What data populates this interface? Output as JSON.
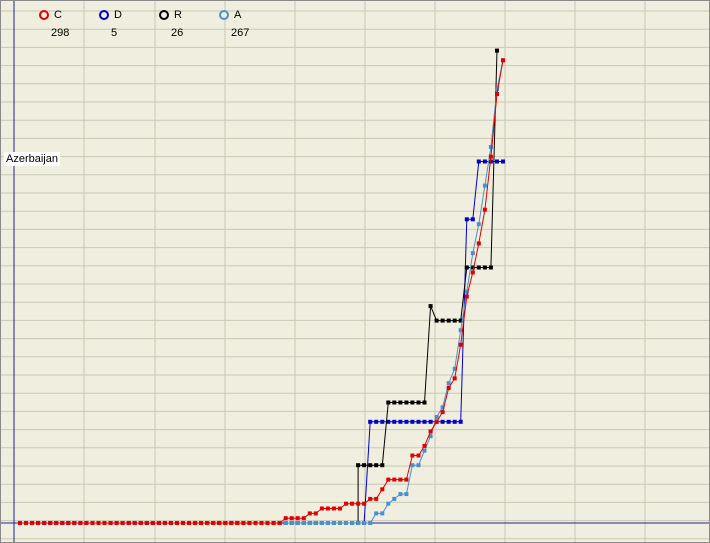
{
  "chart_data": {
    "type": "line",
    "region_label": "Azerbaijan",
    "series": [
      {
        "name": "C",
        "count": "298",
        "color": "#e00000",
        "points": [
          [
            0,
            0
          ],
          [
            1,
            0
          ],
          [
            2,
            0
          ],
          [
            3,
            0
          ],
          [
            4,
            0
          ],
          [
            5,
            0
          ],
          [
            6,
            0
          ],
          [
            7,
            0
          ],
          [
            8,
            0
          ],
          [
            9,
            0
          ],
          [
            10,
            0
          ],
          [
            11,
            0
          ],
          [
            12,
            0
          ],
          [
            13,
            0
          ],
          [
            14,
            0
          ],
          [
            15,
            0
          ],
          [
            16,
            0
          ],
          [
            17,
            0
          ],
          [
            18,
            0
          ],
          [
            19,
            0
          ],
          [
            20,
            0
          ],
          [
            21,
            0
          ],
          [
            22,
            0
          ],
          [
            23,
            0
          ],
          [
            24,
            0
          ],
          [
            25,
            0
          ],
          [
            26,
            0
          ],
          [
            27,
            0
          ],
          [
            28,
            0
          ],
          [
            29,
            0
          ],
          [
            30,
            0
          ],
          [
            31,
            0
          ],
          [
            32,
            0
          ],
          [
            33,
            0
          ],
          [
            34,
            0
          ],
          [
            35,
            0
          ],
          [
            36,
            0
          ],
          [
            37,
            0
          ],
          [
            38,
            0
          ],
          [
            39,
            0
          ],
          [
            40,
            0
          ],
          [
            41,
            0
          ],
          [
            42,
            0
          ],
          [
            43,
            0
          ],
          [
            44,
            1
          ],
          [
            45,
            1
          ],
          [
            46,
            1
          ],
          [
            47,
            1
          ],
          [
            48,
            2
          ],
          [
            49,
            2
          ],
          [
            50,
            3
          ],
          [
            51,
            3
          ],
          [
            52,
            3
          ],
          [
            53,
            3
          ],
          [
            54,
            4
          ],
          [
            55,
            4
          ],
          [
            56,
            4
          ],
          [
            57,
            4
          ],
          [
            58,
            5
          ],
          [
            59,
            5
          ],
          [
            60,
            7
          ],
          [
            61,
            9
          ],
          [
            62,
            9
          ],
          [
            63,
            9
          ],
          [
            64,
            9
          ],
          [
            65,
            14
          ],
          [
            66,
            14
          ],
          [
            67,
            16
          ],
          [
            68,
            19
          ],
          [
            69,
            21
          ],
          [
            70,
            23
          ],
          [
            71,
            28
          ],
          [
            72,
            30
          ],
          [
            73,
            37
          ],
          [
            74,
            47
          ],
          [
            75,
            52
          ],
          [
            76,
            58
          ],
          [
            77,
            65
          ],
          [
            78,
            76
          ],
          [
            79,
            89
          ],
          [
            80,
            96
          ]
        ]
      },
      {
        "name": "D",
        "count": "5",
        "color": "#0000cc",
        "points": [
          [
            0,
            0
          ],
          [
            1,
            0
          ],
          [
            2,
            0
          ],
          [
            3,
            0
          ],
          [
            4,
            0
          ],
          [
            5,
            0
          ],
          [
            6,
            0
          ],
          [
            7,
            0
          ],
          [
            8,
            0
          ],
          [
            9,
            0
          ],
          [
            10,
            0
          ],
          [
            11,
            0
          ],
          [
            12,
            0
          ],
          [
            13,
            0
          ],
          [
            14,
            0
          ],
          [
            15,
            0
          ],
          [
            16,
            0
          ],
          [
            17,
            0
          ],
          [
            18,
            0
          ],
          [
            19,
            0
          ],
          [
            20,
            0
          ],
          [
            21,
            0
          ],
          [
            22,
            0
          ],
          [
            23,
            0
          ],
          [
            24,
            0
          ],
          [
            25,
            0
          ],
          [
            26,
            0
          ],
          [
            27,
            0
          ],
          [
            28,
            0
          ],
          [
            29,
            0
          ],
          [
            30,
            0
          ],
          [
            31,
            0
          ],
          [
            32,
            0
          ],
          [
            33,
            0
          ],
          [
            34,
            0
          ],
          [
            35,
            0
          ],
          [
            36,
            0
          ],
          [
            37,
            0
          ],
          [
            38,
            0
          ],
          [
            39,
            0
          ],
          [
            40,
            0
          ],
          [
            41,
            0
          ],
          [
            42,
            0
          ],
          [
            43,
            0
          ],
          [
            44,
            0
          ],
          [
            45,
            0
          ],
          [
            46,
            0
          ],
          [
            47,
            0
          ],
          [
            48,
            0
          ],
          [
            49,
            0
          ],
          [
            50,
            0
          ],
          [
            51,
            0
          ],
          [
            52,
            0
          ],
          [
            53,
            0
          ],
          [
            54,
            0
          ],
          [
            55,
            0
          ],
          [
            56,
            0
          ],
          [
            57,
            0
          ],
          [
            58,
            21
          ],
          [
            59,
            21
          ],
          [
            60,
            21
          ],
          [
            61,
            21
          ],
          [
            62,
            21
          ],
          [
            63,
            21
          ],
          [
            64,
            21
          ],
          [
            65,
            21
          ],
          [
            66,
            21
          ],
          [
            67,
            21
          ],
          [
            68,
            21
          ],
          [
            69,
            21
          ],
          [
            70,
            21
          ],
          [
            71,
            21
          ],
          [
            72,
            21
          ],
          [
            73,
            21
          ],
          [
            74,
            63
          ],
          [
            75,
            63
          ],
          [
            76,
            75
          ],
          [
            77,
            75
          ],
          [
            78,
            75
          ],
          [
            79,
            75
          ],
          [
            80,
            75
          ]
        ]
      },
      {
        "name": "R",
        "count": "26",
        "color": "#000000",
        "points": [
          [
            56,
            0
          ],
          [
            56,
            12
          ],
          [
            57,
            12
          ],
          [
            58,
            12
          ],
          [
            59,
            12
          ],
          [
            60,
            12
          ],
          [
            61,
            25
          ],
          [
            62,
            25
          ],
          [
            63,
            25
          ],
          [
            64,
            25
          ],
          [
            65,
            25
          ],
          [
            66,
            25
          ],
          [
            67,
            25
          ],
          [
            68,
            45
          ],
          [
            69,
            42
          ],
          [
            70,
            42
          ],
          [
            71,
            42
          ],
          [
            72,
            42
          ],
          [
            73,
            42
          ],
          [
            74,
            53
          ],
          [
            75,
            53
          ],
          [
            76,
            53
          ],
          [
            77,
            53
          ],
          [
            78,
            53
          ],
          [
            79,
            98
          ]
        ]
      },
      {
        "name": "A",
        "count": "267",
        "color": "#4a90d0",
        "points": [
          [
            44,
            0
          ],
          [
            45,
            0
          ],
          [
            46,
            0
          ],
          [
            47,
            0
          ],
          [
            48,
            0
          ],
          [
            49,
            0
          ],
          [
            50,
            0
          ],
          [
            51,
            0
          ],
          [
            52,
            0
          ],
          [
            53,
            0
          ],
          [
            54,
            0
          ],
          [
            55,
            0
          ],
          [
            56,
            0
          ],
          [
            57,
            0
          ],
          [
            58,
            0
          ],
          [
            59,
            2
          ],
          [
            60,
            2
          ],
          [
            61,
            4
          ],
          [
            62,
            5
          ],
          [
            63,
            6
          ],
          [
            64,
            6
          ],
          [
            65,
            12
          ],
          [
            66,
            12
          ],
          [
            67,
            15
          ],
          [
            68,
            18
          ],
          [
            69,
            22
          ],
          [
            70,
            24
          ],
          [
            71,
            29
          ],
          [
            72,
            32
          ],
          [
            73,
            40
          ],
          [
            74,
            48
          ],
          [
            75,
            56
          ],
          [
            76,
            62
          ],
          [
            77,
            70
          ],
          [
            78,
            78
          ],
          [
            79,
            90
          ],
          [
            80,
            96
          ]
        ]
      }
    ],
    "xlim": [
      0,
      80
    ],
    "ylim": [
      0,
      100
    ],
    "grid": true,
    "legend_position": "top-left"
  }
}
